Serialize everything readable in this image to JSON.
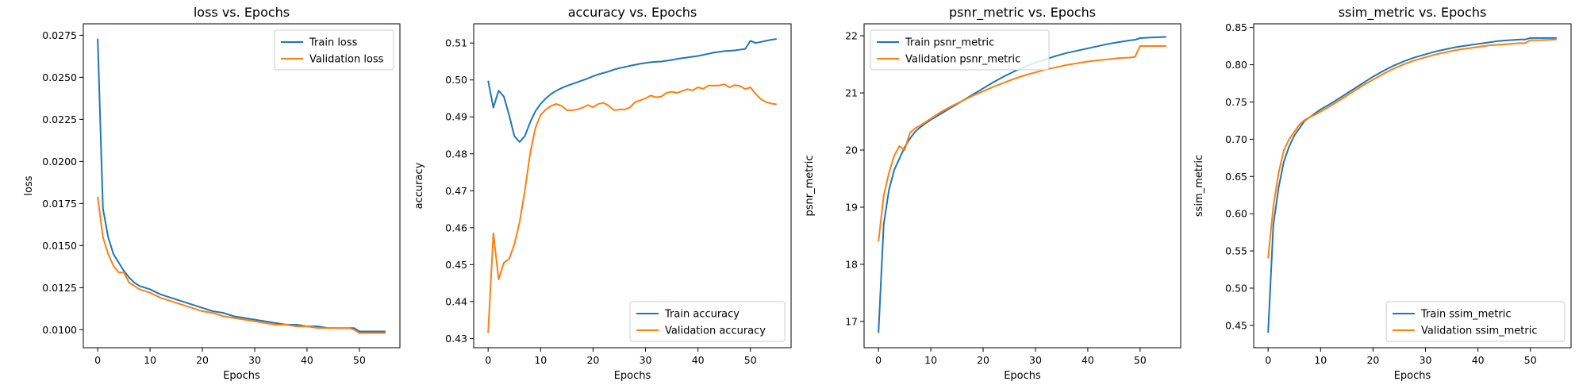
{
  "chart_data": [
    {
      "type": "line",
      "title": "loss vs. Epochs",
      "xlabel": "Epochs",
      "ylabel": "loss",
      "xlim": [
        -2.75,
        57.75
      ],
      "ylim": [
        0.00893,
        0.02818
      ],
      "xticks": [
        0,
        10,
        20,
        30,
        40,
        50
      ],
      "yticks": [
        0.01,
        0.0125,
        0.015,
        0.0175,
        0.02,
        0.0225,
        0.025,
        0.0275
      ],
      "ytick_labels": [
        "0.0100",
        "0.0125",
        "0.0150",
        "0.0175",
        "0.0200",
        "0.0225",
        "0.0250",
        "0.0275"
      ],
      "legend": "top-right",
      "x": [
        0,
        1,
        2,
        3,
        4,
        5,
        6,
        7,
        8,
        9,
        10,
        12,
        14,
        16,
        18,
        20,
        22,
        24,
        26,
        28,
        30,
        32,
        34,
        36,
        38,
        40,
        42,
        44,
        46,
        48,
        49,
        50,
        52,
        55
      ],
      "series": [
        {
          "name": "Train loss",
          "color": "#1f77b4",
          "values": [
            0.0273,
            0.0172,
            0.0155,
            0.0145,
            0.014,
            0.0135,
            0.0131,
            0.0128,
            0.0126,
            0.0125,
            0.0124,
            0.0121,
            0.0119,
            0.0117,
            0.0115,
            0.0113,
            0.0111,
            0.011,
            0.0108,
            0.0107,
            0.0106,
            0.0105,
            0.0104,
            0.0103,
            0.0103,
            0.0102,
            0.0102,
            0.0101,
            0.0101,
            0.0101,
            0.0101,
            0.0099,
            0.0099,
            0.0099
          ]
        },
        {
          "name": "Validation loss",
          "color": "#ff7f0e",
          "values": [
            0.0179,
            0.0155,
            0.0145,
            0.0138,
            0.0134,
            0.0134,
            0.0128,
            0.0126,
            0.0124,
            0.0123,
            0.0122,
            0.0119,
            0.0117,
            0.0115,
            0.0113,
            0.0111,
            0.011,
            0.0108,
            0.0107,
            0.0106,
            0.0105,
            0.0104,
            0.0103,
            0.0103,
            0.0102,
            0.0102,
            0.0101,
            0.0101,
            0.0101,
            0.0101,
            0.01,
            0.0098,
            0.0098,
            0.0098
          ]
        }
      ]
    },
    {
      "type": "line",
      "title": "accuracy vs. Epochs",
      "xlabel": "Epochs",
      "ylabel": "accuracy",
      "xlim": [
        -2.75,
        57.75
      ],
      "ylim": [
        0.4275,
        0.5152
      ],
      "xticks": [
        0,
        10,
        20,
        30,
        40,
        50
      ],
      "yticks": [
        0.43,
        0.44,
        0.45,
        0.46,
        0.47,
        0.48,
        0.49,
        0.5,
        0.51
      ],
      "ytick_labels": [
        "0.43",
        "0.44",
        "0.45",
        "0.46",
        "0.47",
        "0.48",
        "0.49",
        "0.50",
        "0.51"
      ],
      "legend": "lower-right",
      "x": [
        0,
        1,
        2,
        3,
        4,
        5,
        6,
        7,
        8,
        9,
        10,
        11,
        12,
        13,
        14,
        15,
        16,
        17,
        18,
        19,
        20,
        21,
        22,
        23,
        24,
        25,
        26,
        27,
        28,
        29,
        30,
        31,
        32,
        33,
        34,
        35,
        36,
        37,
        38,
        39,
        40,
        41,
        42,
        43,
        44,
        45,
        46,
        47,
        48,
        49,
        50,
        51,
        52,
        53,
        54,
        55
      ],
      "series": [
        {
          "name": "Train accuracy",
          "color": "#1f77b4",
          "values": [
            0.4998,
            0.4925,
            0.4971,
            0.4955,
            0.4905,
            0.4848,
            0.4832,
            0.4848,
            0.4885,
            0.4915,
            0.4935,
            0.495,
            0.4962,
            0.4971,
            0.4978,
            0.4984,
            0.4989,
            0.4994,
            0.4999,
            0.5004,
            0.501,
            0.5015,
            0.5019,
            0.5023,
            0.5028,
            0.5032,
            0.5035,
            0.5038,
            0.5041,
            0.5044,
            0.5046,
            0.5048,
            0.5049,
            0.505,
            0.5052,
            0.5054,
            0.5057,
            0.5059,
            0.5061,
            0.5063,
            0.5065,
            0.5068,
            0.5071,
            0.5074,
            0.5076,
            0.5078,
            0.5079,
            0.508,
            0.5082,
            0.5084,
            0.5106,
            0.51,
            0.5103,
            0.5106,
            0.5109,
            0.5111
          ]
        },
        {
          "name": "Validation accuracy",
          "color": "#ff7f0e",
          "values": [
            0.4315,
            0.4585,
            0.446,
            0.4505,
            0.4515,
            0.4555,
            0.4615,
            0.47,
            0.48,
            0.487,
            0.4905,
            0.492,
            0.493,
            0.4935,
            0.493,
            0.4918,
            0.4918,
            0.492,
            0.4925,
            0.4932,
            0.4926,
            0.4935,
            0.4938,
            0.493,
            0.4918,
            0.492,
            0.492,
            0.4925,
            0.494,
            0.4945,
            0.495,
            0.4958,
            0.4953,
            0.4955,
            0.4965,
            0.4968,
            0.4965,
            0.497,
            0.4975,
            0.4972,
            0.498,
            0.4976,
            0.4985,
            0.4985,
            0.4985,
            0.4988,
            0.498,
            0.4986,
            0.4984,
            0.4975,
            0.498,
            0.4962,
            0.4948,
            0.494,
            0.4936,
            0.4934
          ]
        }
      ]
    },
    {
      "type": "line",
      "title": "psnr_metric vs. Epochs",
      "xlabel": "Epochs",
      "ylabel": "psnr_metric",
      "xlim": [
        -2.75,
        57.75
      ],
      "ylim": [
        16.54,
        22.21
      ],
      "xticks": [
        0,
        10,
        20,
        30,
        40,
        50
      ],
      "yticks": [
        17,
        18,
        19,
        20,
        21,
        22
      ],
      "ytick_labels": [
        "17",
        "18",
        "19",
        "20",
        "21",
        "22"
      ],
      "legend": "top-left",
      "x": [
        0,
        1,
        2,
        3,
        4,
        5,
        6,
        7,
        8,
        9,
        10,
        12,
        14,
        16,
        18,
        20,
        22,
        24,
        26,
        28,
        30,
        32,
        34,
        36,
        38,
        40,
        42,
        44,
        46,
        48,
        49,
        50,
        52,
        55
      ],
      "series": [
        {
          "name": "Train psnr_metric",
          "color": "#1f77b4",
          "values": [
            16.8,
            18.7,
            19.3,
            19.65,
            19.85,
            20.05,
            20.2,
            20.32,
            20.4,
            20.47,
            20.53,
            20.64,
            20.75,
            20.86,
            20.97,
            21.08,
            21.19,
            21.29,
            21.38,
            21.46,
            21.53,
            21.59,
            21.65,
            21.7,
            21.74,
            21.78,
            21.82,
            21.86,
            21.89,
            21.92,
            21.93,
            21.96,
            21.97,
            21.98
          ]
        },
        {
          "name": "Validation psnr_metric",
          "color": "#ff7f0e",
          "values": [
            18.4,
            19.2,
            19.6,
            19.9,
            20.07,
            20.0,
            20.3,
            20.38,
            20.43,
            20.49,
            20.55,
            20.67,
            20.77,
            20.86,
            20.95,
            21.03,
            21.11,
            21.18,
            21.25,
            21.31,
            21.36,
            21.41,
            21.45,
            21.49,
            21.52,
            21.55,
            21.57,
            21.59,
            21.61,
            21.62,
            21.63,
            21.82,
            21.82,
            21.82
          ]
        }
      ]
    },
    {
      "type": "line",
      "title": "ssim_metric vs. Epochs",
      "xlabel": "Epochs",
      "ylabel": "ssim_metric",
      "xlim": [
        -2.75,
        57.75
      ],
      "ylim": [
        0.42,
        0.855
      ],
      "xticks": [
        0,
        10,
        20,
        30,
        40,
        50
      ],
      "yticks": [
        0.45,
        0.5,
        0.55,
        0.6,
        0.65,
        0.7,
        0.75,
        0.8,
        0.85
      ],
      "ytick_labels": [
        "0.45",
        "0.50",
        "0.55",
        "0.60",
        "0.65",
        "0.70",
        "0.75",
        "0.80",
        "0.85"
      ],
      "legend": "lower-right",
      "x": [
        0,
        1,
        2,
        3,
        4,
        5,
        6,
        7,
        8,
        9,
        10,
        12,
        14,
        16,
        18,
        20,
        22,
        24,
        26,
        28,
        30,
        32,
        34,
        36,
        38,
        40,
        42,
        44,
        46,
        48,
        49,
        50,
        52,
        55
      ],
      "series": [
        {
          "name": "Train ssim_metric",
          "color": "#1f77b4",
          "values": [
            0.44,
            0.585,
            0.635,
            0.67,
            0.69,
            0.705,
            0.715,
            0.725,
            0.73,
            0.735,
            0.74,
            0.748,
            0.757,
            0.766,
            0.775,
            0.784,
            0.792,
            0.799,
            0.805,
            0.81,
            0.814,
            0.818,
            0.821,
            0.824,
            0.826,
            0.828,
            0.83,
            0.832,
            0.833,
            0.834,
            0.834,
            0.836,
            0.836,
            0.836
          ]
        },
        {
          "name": "Validation ssim_metric",
          "color": "#ff7f0e",
          "values": [
            0.54,
            0.61,
            0.655,
            0.685,
            0.7,
            0.71,
            0.72,
            0.726,
            0.73,
            0.733,
            0.737,
            0.745,
            0.754,
            0.763,
            0.772,
            0.78,
            0.788,
            0.795,
            0.801,
            0.806,
            0.81,
            0.814,
            0.817,
            0.82,
            0.822,
            0.824,
            0.826,
            0.827,
            0.828,
            0.829,
            0.829,
            0.833,
            0.833,
            0.834
          ]
        }
      ]
    }
  ]
}
